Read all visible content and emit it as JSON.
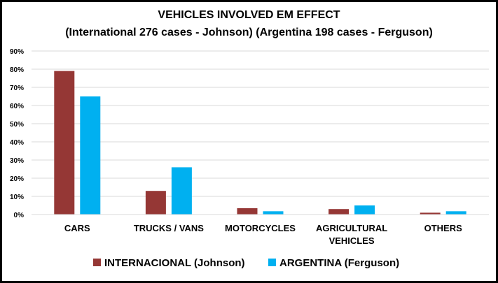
{
  "chart_data": {
    "type": "bar",
    "title": "VEHICLES INVOLVED EM EFFECT",
    "subtitle": "(International 276 cases - Johnson) (Argentina 198 cases - Ferguson)",
    "categories": [
      [
        "CARS"
      ],
      [
        "TRUCKS / VANS"
      ],
      [
        "MOTORCYCLES"
      ],
      [
        "AGRICULTURAL",
        "VEHICLES"
      ],
      [
        "OTHERS"
      ]
    ],
    "series": [
      {
        "name": "INTERNACIONAL (Johnson)",
        "color": "#953735",
        "values": [
          79,
          13,
          3.5,
          3,
          1
        ]
      },
      {
        "name": "ARGENTINA (Ferguson)",
        "color": "#00B0F0",
        "values": [
          65,
          26,
          1.8,
          5,
          1.8
        ]
      }
    ],
    "ylim": [
      0,
      90
    ],
    "y_ticks": [
      "0%",
      "10%",
      "20%",
      "30%",
      "40%",
      "50%",
      "60%",
      "70%",
      "80%",
      "90%"
    ],
    "grid": true,
    "legend_position": "bottom"
  }
}
